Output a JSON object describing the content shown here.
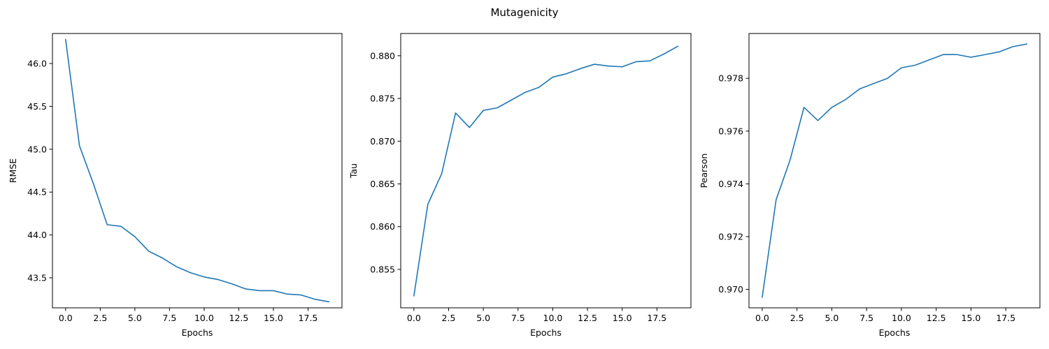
{
  "figure": {
    "suptitle": "Mutagenicity"
  },
  "chart_data": [
    {
      "type": "line",
      "xlabel": "Epochs",
      "ylabel": "RMSE",
      "xlim": [
        -0.95,
        19.95
      ],
      "ylim": [
        43.15,
        46.35
      ],
      "xticks": [
        0.0,
        2.5,
        5.0,
        7.5,
        10.0,
        12.5,
        15.0,
        17.5
      ],
      "xtick_labels": [
        "0.0",
        "2.5",
        "5.0",
        "7.5",
        "10.0",
        "12.5",
        "15.0",
        "17.5"
      ],
      "yticks": [
        43.5,
        44.0,
        44.5,
        45.0,
        45.5,
        46.0
      ],
      "ytick_labels": [
        "43.5",
        "44.0",
        "44.5",
        "45.0",
        "45.5",
        "46.0"
      ],
      "grid": false,
      "color": "#1f77b4",
      "x": [
        0,
        1,
        2,
        3,
        4,
        5,
        6,
        7,
        8,
        9,
        10,
        11,
        12,
        13,
        14,
        15,
        16,
        17,
        18,
        19
      ],
      "values": [
        46.28,
        45.04,
        44.6,
        44.12,
        44.1,
        43.98,
        43.81,
        43.73,
        43.63,
        43.56,
        43.51,
        43.48,
        43.43,
        43.37,
        43.35,
        43.35,
        43.31,
        43.3,
        43.25,
        43.22
      ]
    },
    {
      "type": "line",
      "xlabel": "Epochs",
      "ylabel": "Tau",
      "xlim": [
        -0.95,
        19.95
      ],
      "ylim": [
        0.8505,
        0.8826
      ],
      "xticks": [
        0.0,
        2.5,
        5.0,
        7.5,
        10.0,
        12.5,
        15.0,
        17.5
      ],
      "xtick_labels": [
        "0.0",
        "2.5",
        "5.0",
        "7.5",
        "10.0",
        "12.5",
        "15.0",
        "17.5"
      ],
      "yticks": [
        0.855,
        0.86,
        0.865,
        0.87,
        0.875,
        0.88
      ],
      "ytick_labels": [
        "0.855",
        "0.860",
        "0.865",
        "0.870",
        "0.875",
        "0.880"
      ],
      "grid": false,
      "color": "#1f77b4",
      "x": [
        0,
        1,
        2,
        3,
        4,
        5,
        6,
        7,
        8,
        9,
        10,
        11,
        12,
        13,
        14,
        15,
        16,
        17,
        18,
        19
      ],
      "values": [
        0.8519,
        0.8626,
        0.8662,
        0.8733,
        0.8716,
        0.8736,
        0.8739,
        0.8748,
        0.8757,
        0.8763,
        0.8775,
        0.8779,
        0.8785,
        0.879,
        0.8788,
        0.8787,
        0.8793,
        0.8794,
        0.8802,
        0.8811
      ]
    },
    {
      "type": "line",
      "xlabel": "Epochs",
      "ylabel": "Pearson",
      "xlim": [
        -0.95,
        19.95
      ],
      "ylim": [
        0.9693,
        0.9797
      ],
      "xticks": [
        0.0,
        2.5,
        5.0,
        7.5,
        10.0,
        12.5,
        15.0,
        17.5
      ],
      "xtick_labels": [
        "0.0",
        "2.5",
        "5.0",
        "7.5",
        "10.0",
        "12.5",
        "15.0",
        "17.5"
      ],
      "yticks": [
        0.97,
        0.972,
        0.974,
        0.976,
        0.978
      ],
      "ytick_labels": [
        "0.970",
        "0.972",
        "0.974",
        "0.976",
        "0.978"
      ],
      "grid": false,
      "color": "#1f77b4",
      "x": [
        0,
        1,
        2,
        3,
        4,
        5,
        6,
        7,
        8,
        9,
        10,
        11,
        12,
        13,
        14,
        15,
        16,
        17,
        18,
        19
      ],
      "values": [
        0.9697,
        0.9734,
        0.9749,
        0.9769,
        0.9764,
        0.9769,
        0.9772,
        0.9776,
        0.9778,
        0.978,
        0.9784,
        0.9785,
        0.9787,
        0.9789,
        0.9789,
        0.9788,
        0.9789,
        0.979,
        0.9792,
        0.9793
      ]
    }
  ]
}
